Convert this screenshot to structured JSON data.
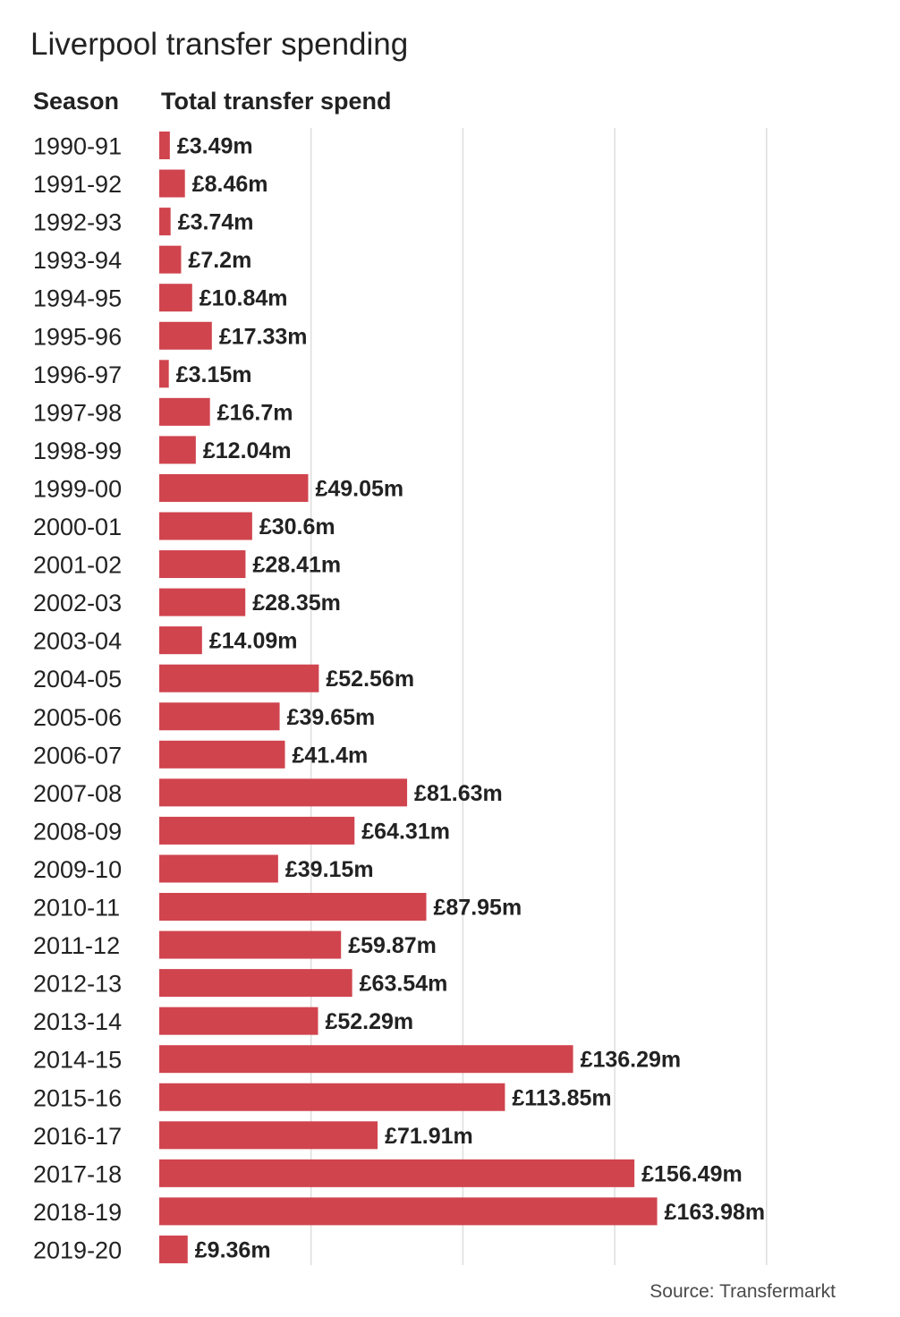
{
  "header": {
    "title": "Liverpool transfer spending",
    "col_season": "Season",
    "col_spend": "Total transfer spend"
  },
  "footer": {
    "source": "Source: Transfermarkt"
  },
  "colors": {
    "bar": "#d0444e",
    "gridline": "#dddddd"
  },
  "chart_data": {
    "type": "bar",
    "orientation": "horizontal",
    "title": "Liverpool transfer spending",
    "xlabel": "Total transfer spend",
    "ylabel": "Season",
    "xlim": [
      0,
      200
    ],
    "grid": true,
    "categories": [
      "1990-91",
      "1991-92",
      "1992-93",
      "1993-94",
      "1994-95",
      "1995-96",
      "1996-97",
      "1997-98",
      "1998-99",
      "1999-00",
      "2000-01",
      "2001-02",
      "2002-03",
      "2003-04",
      "2004-05",
      "2005-06",
      "2006-07",
      "2007-08",
      "2008-09",
      "2009-10",
      "2010-11",
      "2011-12",
      "2012-13",
      "2013-14",
      "2014-15",
      "2015-16",
      "2016-17",
      "2017-18",
      "2018-19",
      "2019-20"
    ],
    "values": [
      3.49,
      8.46,
      3.74,
      7.2,
      10.84,
      17.33,
      3.15,
      16.7,
      12.04,
      49.05,
      30.6,
      28.41,
      28.35,
      14.09,
      52.56,
      39.65,
      41.4,
      81.63,
      64.31,
      39.15,
      87.95,
      59.87,
      63.54,
      52.29,
      136.29,
      113.85,
      71.91,
      156.49,
      163.98,
      9.36
    ],
    "data_labels": [
      "£3.49m",
      "£8.46m",
      "£3.74m",
      "£7.2m",
      "£10.84m",
      "£17.33m",
      "£3.15m",
      "£16.7m",
      "£12.04m",
      "£49.05m",
      "£30.6m",
      "£28.41m",
      "£28.35m",
      "£14.09m",
      "£52.56m",
      "£39.65m",
      "£41.4m",
      "£81.63m",
      "£64.31m",
      "£39.15m",
      "£87.95m",
      "£59.87m",
      "£63.54m",
      "£52.29m",
      "£136.29m",
      "£113.85m",
      "£71.91m",
      "£156.49m",
      "£163.98m",
      "£9.36m"
    ]
  }
}
